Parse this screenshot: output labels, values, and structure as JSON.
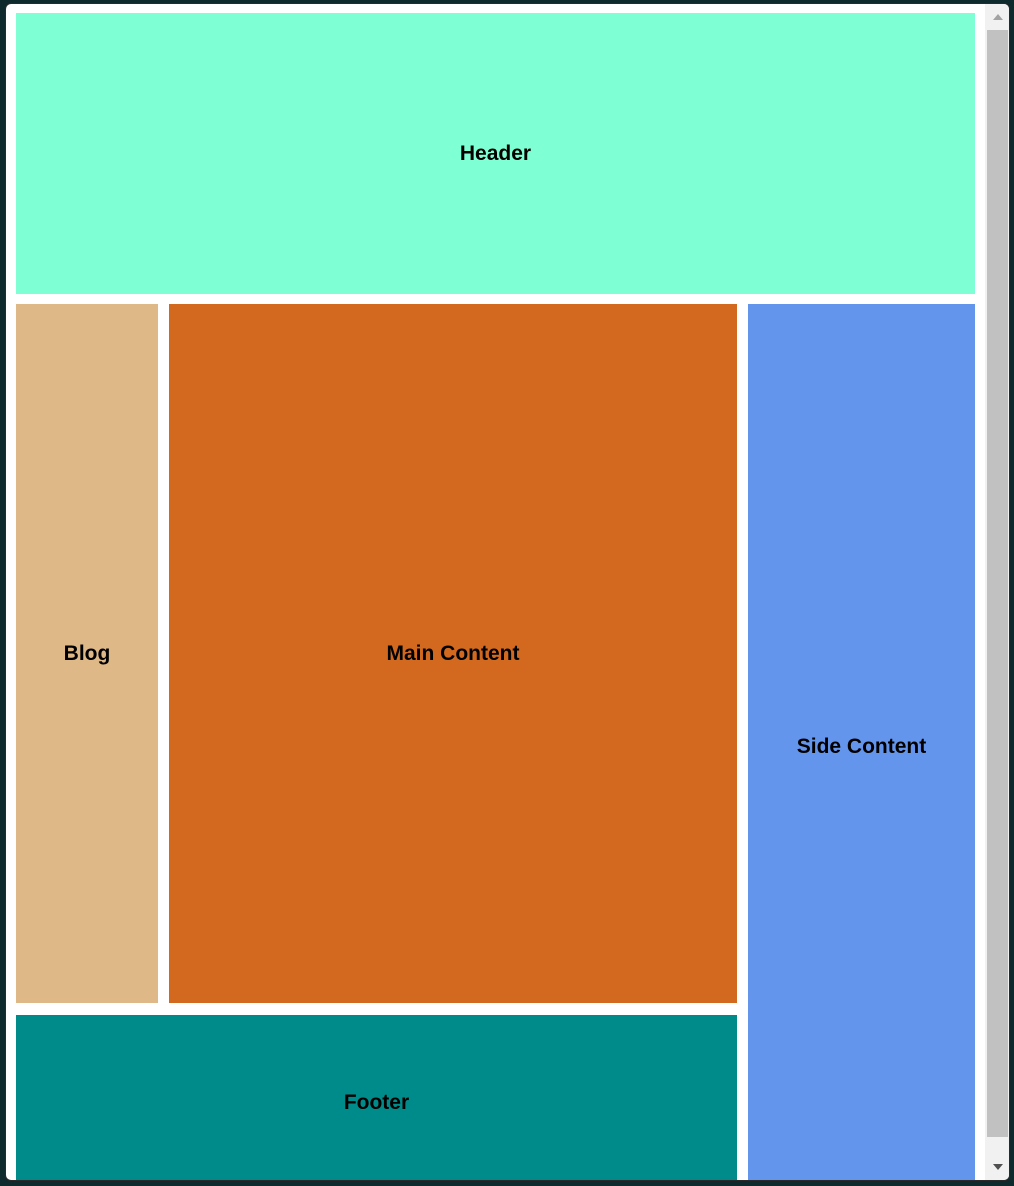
{
  "layout": {
    "header": {
      "label": "Header",
      "color": "#7fffd4"
    },
    "blog": {
      "label": "Blog",
      "color": "#deb887"
    },
    "main": {
      "label": "Main Content",
      "color": "#d2691e"
    },
    "side": {
      "label": "Side Content",
      "color": "#6495ed"
    },
    "footer": {
      "label": "Footer",
      "color": "#008b8b"
    }
  },
  "scrollbar": {
    "up_icon": "scroll-up-arrow-icon",
    "down_icon": "scroll-down-arrow-icon"
  }
}
